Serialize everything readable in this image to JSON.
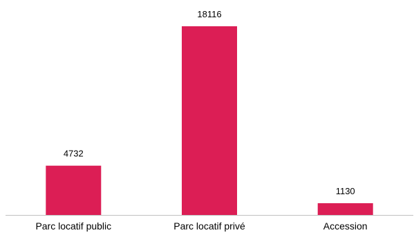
{
  "chart_data": {
    "type": "bar",
    "title": "",
    "xlabel": "",
    "ylabel": "",
    "categories": [
      "Parc locatif public",
      "Parc locatif privé",
      "Accession"
    ],
    "values": [
      4732,
      18116,
      1130
    ],
    "data_labels": [
      "4732",
      "18116",
      "1130"
    ],
    "ylim": [
      0,
      18116
    ],
    "grid": false,
    "legend": "none",
    "bar_color": "#DC1E55",
    "axis_color": "#BFBFBF"
  }
}
